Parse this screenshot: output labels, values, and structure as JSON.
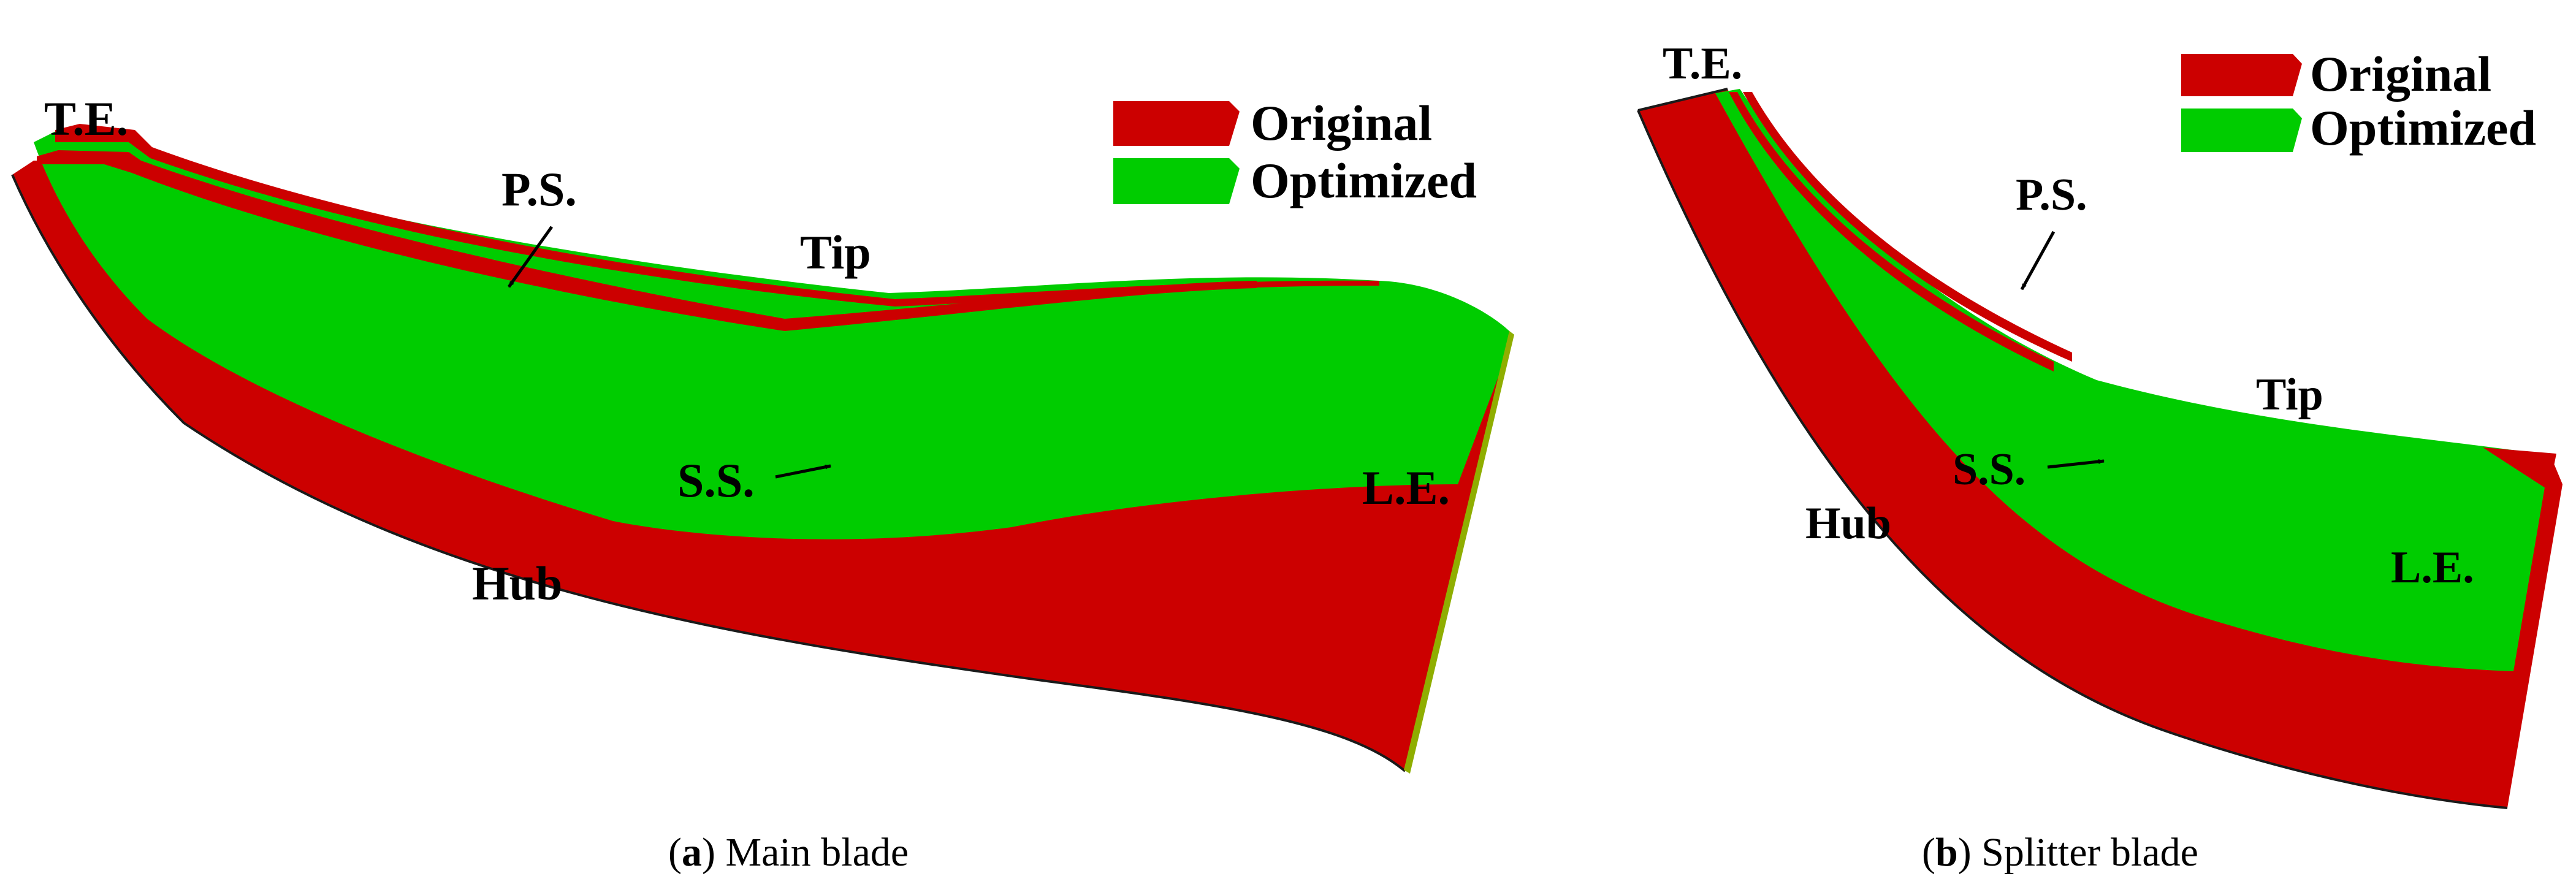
{
  "colors": {
    "original": "#cc0000",
    "optimized": "#00cc00"
  },
  "legend": {
    "original": "Original",
    "optimized": "Optimized"
  },
  "panel_a": {
    "labels": {
      "te": "T.E.",
      "ps": "P.S.",
      "tip": "Tip",
      "ss": "S.S.",
      "le": "L.E.",
      "hub": "Hub"
    },
    "caption": {
      "open": "(",
      "letter": "a",
      "rest": ") Main blade"
    }
  },
  "panel_b": {
    "labels": {
      "te": "T.E.",
      "ps": "P.S.",
      "tip": "Tip",
      "ss": "S.S.",
      "le": "L.E.",
      "hub": "Hub"
    },
    "caption": {
      "open": "(",
      "letter": "b",
      "rest": ") Splitter blade"
    }
  }
}
